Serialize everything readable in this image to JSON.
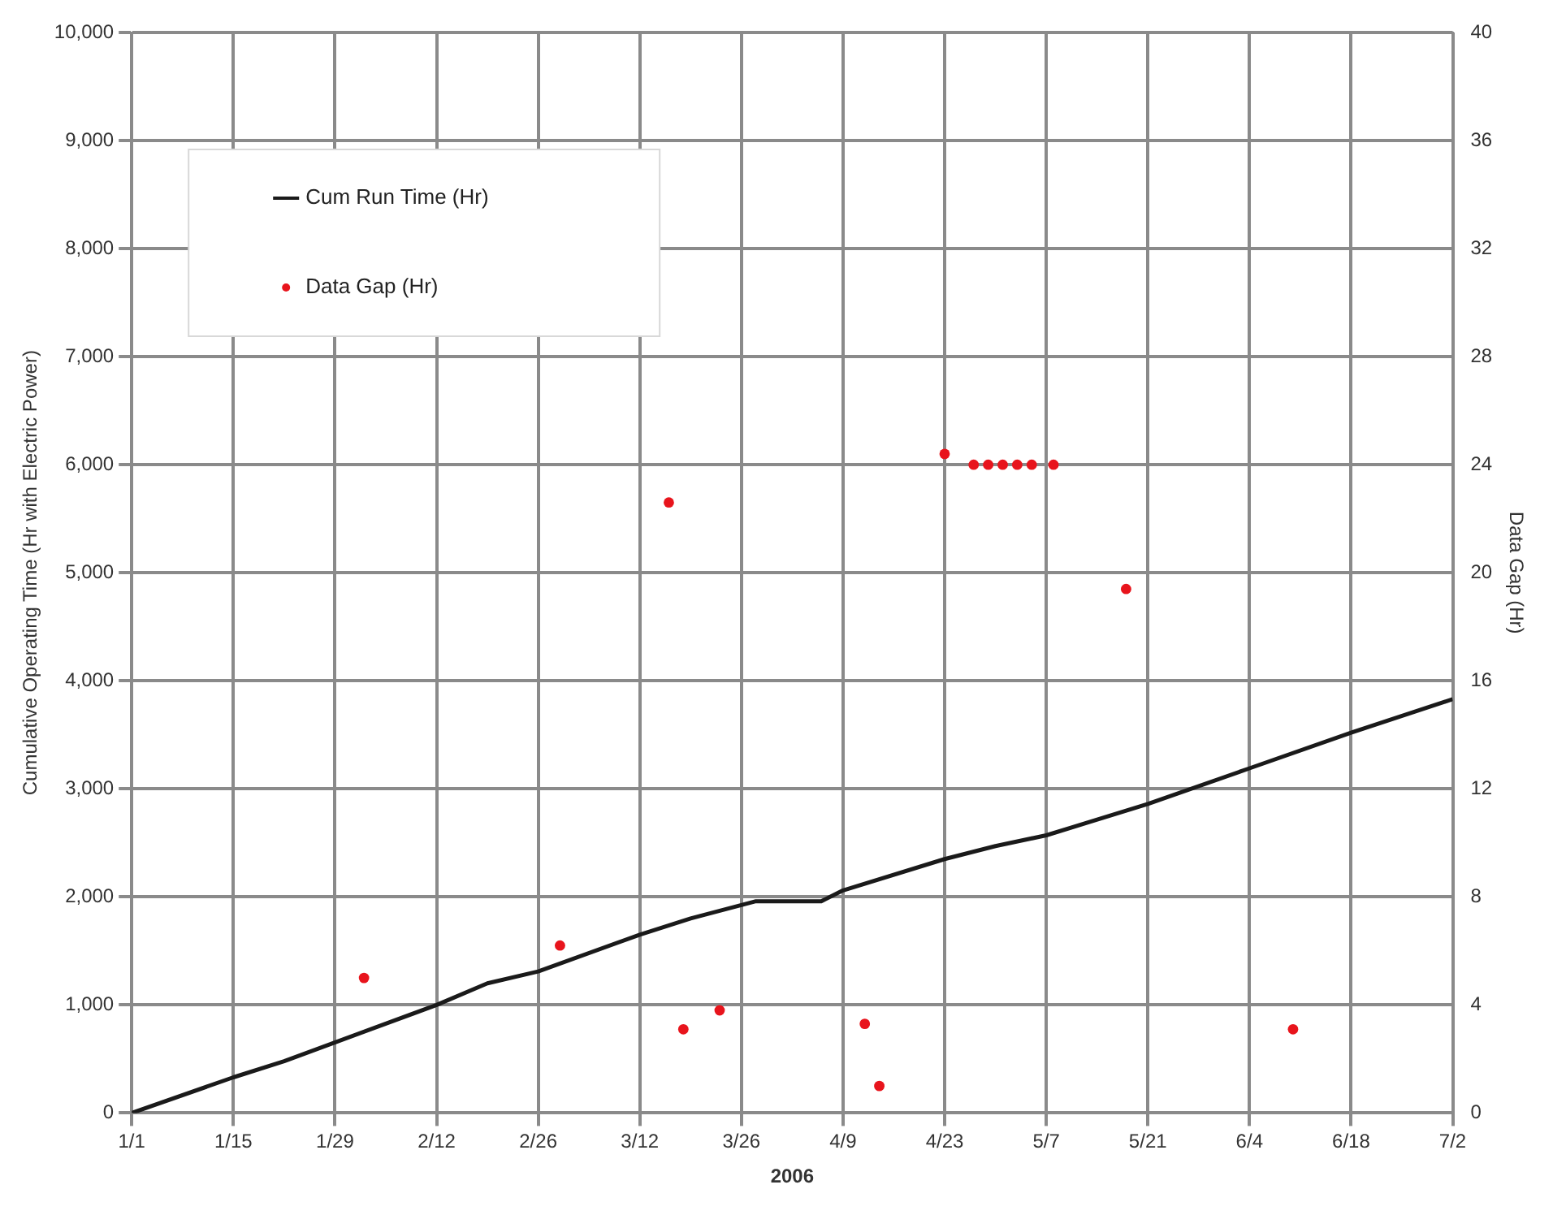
{
  "chart_data": {
    "type": "line",
    "xlabel": "2006",
    "ylabel": "Cumulative Operating Time (Hr with Electric Power)",
    "y2label": "Data Gap (Hr)",
    "xlim": [
      "2006-01-01",
      "2006-07-02"
    ],
    "xticks": [
      {
        "value": "2006-01-01",
        "label": "1/1"
      },
      {
        "value": "2006-01-15",
        "label": "1/15"
      },
      {
        "value": "2006-01-29",
        "label": "1/29"
      },
      {
        "value": "2006-02-12",
        "label": "2/12"
      },
      {
        "value": "2006-02-26",
        "label": "2/26"
      },
      {
        "value": "2006-03-12",
        "label": "3/12"
      },
      {
        "value": "2006-03-26",
        "label": "3/26"
      },
      {
        "value": "2006-04-09",
        "label": "4/9"
      },
      {
        "value": "2006-04-23",
        "label": "4/23"
      },
      {
        "value": "2006-05-07",
        "label": "5/7"
      },
      {
        "value": "2006-05-21",
        "label": "5/21"
      },
      {
        "value": "2006-06-04",
        "label": "6/4"
      },
      {
        "value": "2006-06-18",
        "label": "6/18"
      },
      {
        "value": "2006-07-02",
        "label": "7/2"
      }
    ],
    "ylim": [
      0,
      10000
    ],
    "yticks": [
      {
        "value": 0,
        "label": "0"
      },
      {
        "value": 1000,
        "label": "1,000"
      },
      {
        "value": 2000,
        "label": "2,000"
      },
      {
        "value": 3000,
        "label": "3,000"
      },
      {
        "value": 4000,
        "label": "4,000"
      },
      {
        "value": 5000,
        "label": "5,000"
      },
      {
        "value": 6000,
        "label": "6,000"
      },
      {
        "value": 7000,
        "label": "7,000"
      },
      {
        "value": 8000,
        "label": "8,000"
      },
      {
        "value": 9000,
        "label": "9,000"
      },
      {
        "value": 10000,
        "label": "10,000"
      }
    ],
    "y2lim": [
      0,
      40
    ],
    "y2ticks": [
      0,
      4,
      8,
      12,
      16,
      20,
      24,
      28,
      32,
      36,
      40
    ],
    "grid": true,
    "legend": "top left",
    "series": [
      {
        "name": "Cum Run Time (Hr)",
        "type": "line",
        "color": "#1a1a1a",
        "marker": "none",
        "line_style": "solid",
        "x": [
          "2006-01-01",
          "2006-01-15",
          "2006-01-22",
          "2006-02-12",
          "2006-02-19",
          "2006-02-26",
          "2006-03-12",
          "2006-03-19",
          "2006-03-28",
          "2006-04-06",
          "2006-04-09",
          "2006-04-23",
          "2006-04-30",
          "2006-05-07",
          "2006-05-21",
          "2006-06-04",
          "2006-06-18",
          "2006-07-02"
        ],
        "values": [
          0,
          330,
          480,
          1000,
          1200,
          1310,
          1650,
          1800,
          1960,
          1960,
          2060,
          2350,
          2470,
          2570,
          2860,
          3190,
          3520,
          3830
        ]
      },
      {
        "name": "Data Gap (Hr)",
        "type": "scatter",
        "axis": "y2",
        "color": "#e8141c",
        "marker": "circle",
        "x": [
          "2006-02-02",
          "2006-03-01",
          "2006-03-16",
          "2006-03-18",
          "2006-03-23",
          "2006-04-12",
          "2006-04-14",
          "2006-04-23",
          "2006-04-27",
          "2006-04-29",
          "2006-05-01",
          "2006-05-03",
          "2006-05-05",
          "2006-05-08",
          "2006-05-18",
          "2006-06-10"
        ],
        "values": [
          5.0,
          6.2,
          22.6,
          3.1,
          3.8,
          3.3,
          1.0,
          24.4,
          24.0,
          24.0,
          24.0,
          24.0,
          24.0,
          24.0,
          19.4,
          3.1
        ]
      }
    ]
  }
}
